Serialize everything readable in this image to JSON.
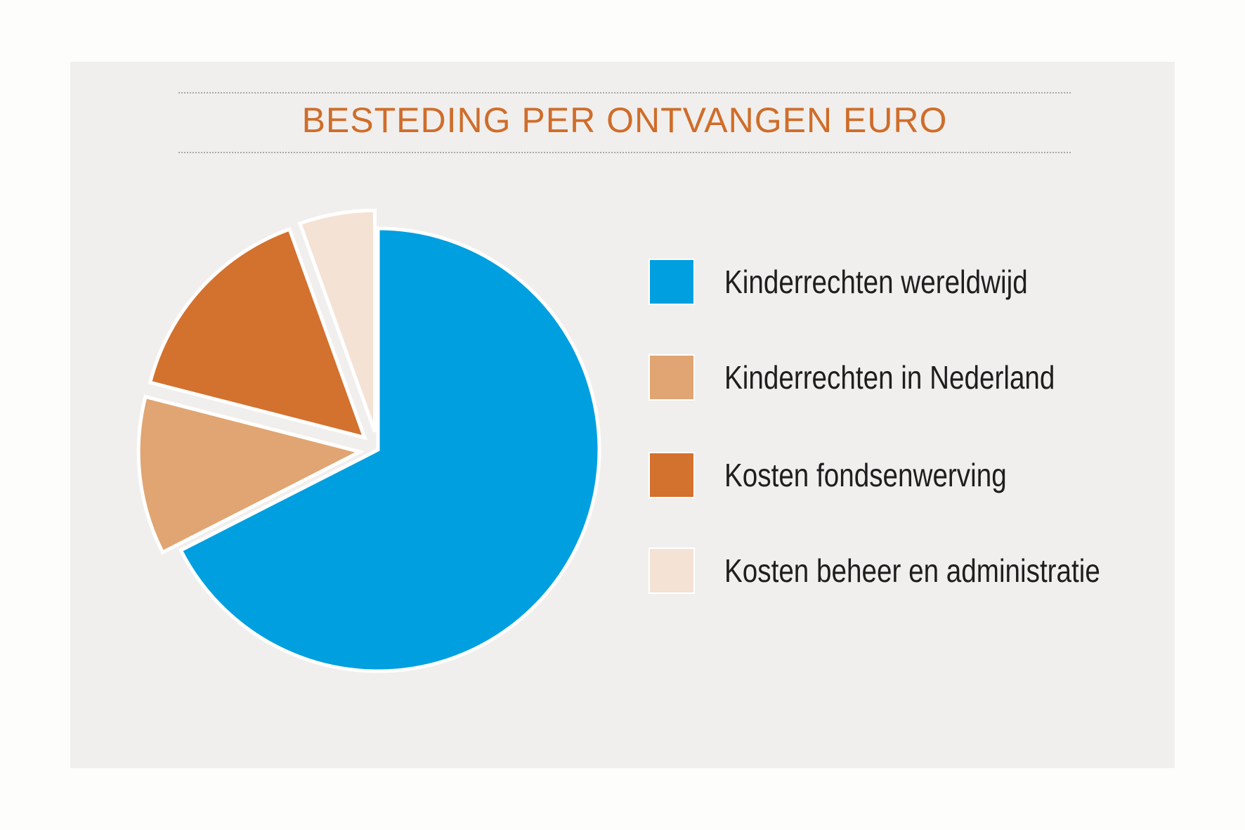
{
  "chart_data": {
    "type": "pie",
    "title": "BESTEDING PER ONTVANGEN EURO",
    "legend_position": "right",
    "exploded": true,
    "slices": [
      {
        "label": "Kinderrechten wereldwijd",
        "value": 67.5,
        "color": "#009fe0"
      },
      {
        "label": "Kinderrechten in Nederland",
        "value": 11.5,
        "color": "#e0a572"
      },
      {
        "label": "Kosten fondsenwerving",
        "value": 15.5,
        "color": "#d3712e"
      },
      {
        "label": "Kosten beheer en administratie",
        "value": 5.5,
        "color": "#f4e2d5"
      }
    ]
  }
}
